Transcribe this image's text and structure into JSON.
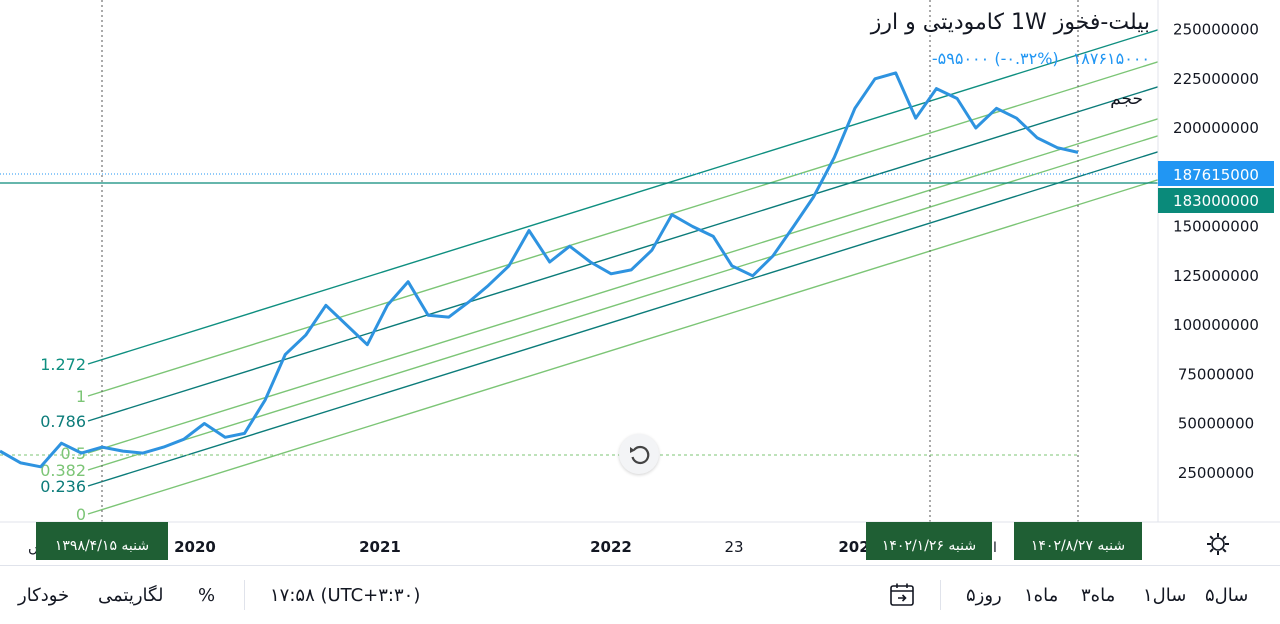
{
  "header": {
    "title": "بیلت-فخوز 1W کامودیتی و ارز",
    "price": "۱۸۷۶۱۵۰۰۰",
    "change": "-۵۹۵۰۰۰ (-۰.۳۲%)",
    "volume_label": "حجم"
  },
  "price_scale": {
    "ticks": [
      "250000000",
      "225000000",
      "200000000",
      "150000000",
      "125000000",
      "100000000",
      "75000000",
      "50000000",
      "25000000"
    ],
    "current_price": "187615000",
    "current_color": "#2196f3",
    "line_price": "183000000",
    "line_color": "#0a8a7a"
  },
  "time_axis": {
    "ticks": [
      "2020",
      "2021",
      "2022",
      "23",
      "202"
    ],
    "cursor_labels": [
      "شنبه ۱۳۹۸/۴/۱۵",
      "شنبه ۱۴۰۲/۱/۲۶",
      "شنبه ۱۴۰۲/۸/۲۷"
    ],
    "cursor_label_color": "#1f5f34",
    "cut_labels": [
      "ں",
      "ا"
    ]
  },
  "fib_channel": {
    "levels": [
      "1.272",
      "1",
      "0.786",
      "0.5",
      "0.382",
      "0.236",
      "0"
    ],
    "colors": {
      "teal": "#0f8f80",
      "green": "#7cc576",
      "dark_teal": "#0c7c7a"
    }
  },
  "toolbar": {
    "ranges": [
      "۵سال",
      "۱سال",
      "۳ماه",
      "۱ماه",
      "۵روز"
    ],
    "calendar_icon": "calendar-goto-icon",
    "time": "۱۷:۵۸ (UTC+۳:۳۰)",
    "percent": "%",
    "log": "لگاریتمی",
    "auto": "خودکار",
    "settings_icon": "gear-icon"
  },
  "chart_data": {
    "type": "line",
    "symbol": "بیلت-فخوز",
    "interval": "1W",
    "ylim": [
      0,
      265000000
    ],
    "last": 187615000,
    "series": [
      {
        "values": [
          {
            "x": "2019-03",
            "y": 36000000
          },
          {
            "x": "2019-04",
            "y": 30000000
          },
          {
            "x": "2019-05",
            "y": 28000000
          },
          {
            "x": "2019-06",
            "y": 40000000
          },
          {
            "x": "2019-07",
            "y": 35000000
          },
          {
            "x": "2019-08",
            "y": 38000000
          },
          {
            "x": "2019-09",
            "y": 36000000
          },
          {
            "x": "2019-10",
            "y": 35000000
          },
          {
            "x": "2019-11",
            "y": 38000000
          },
          {
            "x": "2019-12",
            "y": 42000000
          },
          {
            "x": "2020-01",
            "y": 50000000
          },
          {
            "x": "2020-02",
            "y": 43000000
          },
          {
            "x": "2020-03",
            "y": 45000000
          },
          {
            "x": "2020-04",
            "y": 62000000
          },
          {
            "x": "2020-05",
            "y": 85000000
          },
          {
            "x": "2020-06",
            "y": 95000000
          },
          {
            "x": "2020-07",
            "y": 110000000
          },
          {
            "x": "2020-08",
            "y": 100000000
          },
          {
            "x": "2020-09",
            "y": 90000000
          },
          {
            "x": "2020-10",
            "y": 110000000
          },
          {
            "x": "2020-11",
            "y": 122000000
          },
          {
            "x": "2020-12",
            "y": 105000000
          },
          {
            "x": "2021-01",
            "y": 104000000
          },
          {
            "x": "2021-02",
            "y": 112000000
          },
          {
            "x": "2021-03",
            "y": 120000000
          },
          {
            "x": "2021-04",
            "y": 130000000
          },
          {
            "x": "2021-05",
            "y": 148000000
          },
          {
            "x": "2021-06",
            "y": 132000000
          },
          {
            "x": "2021-07",
            "y": 140000000
          },
          {
            "x": "2021-08",
            "y": 132000000
          },
          {
            "x": "2021-09",
            "y": 126000000
          },
          {
            "x": "2021-10",
            "y": 128000000
          },
          {
            "x": "2021-11",
            "y": 138000000
          },
          {
            "x": "2021-12",
            "y": 156000000
          },
          {
            "x": "2022-01",
            "y": 150000000
          },
          {
            "x": "2022-02",
            "y": 145000000
          },
          {
            "x": "2022-03",
            "y": 130000000
          },
          {
            "x": "2022-04",
            "y": 125000000
          },
          {
            "x": "2022-05",
            "y": 135000000
          },
          {
            "x": "2022-06",
            "y": 150000000
          },
          {
            "x": "2022-07",
            "y": 165000000
          },
          {
            "x": "2022-08",
            "y": 185000000
          },
          {
            "x": "2022-09",
            "y": 210000000
          },
          {
            "x": "2022-10",
            "y": 225000000
          },
          {
            "x": "2022-11",
            "y": 228000000
          },
          {
            "x": "2022-12",
            "y": 205000000
          },
          {
            "x": "2023-01",
            "y": 220000000
          },
          {
            "x": "2023-02",
            "y": 215000000
          },
          {
            "x": "2023-03",
            "y": 200000000
          },
          {
            "x": "2023-04",
            "y": 210000000
          },
          {
            "x": "2023-05",
            "y": 205000000
          },
          {
            "x": "2023-06",
            "y": 195000000
          },
          {
            "x": "2023-07",
            "y": 190000000
          },
          {
            "x": "2023-08",
            "y": 187615000
          }
        ]
      }
    ]
  }
}
